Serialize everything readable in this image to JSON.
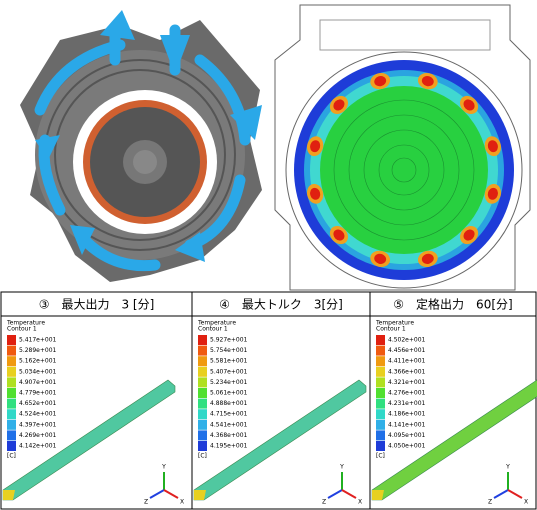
{
  "panels": [
    {
      "title": "③　最大出力　3 [分]",
      "legend_title": "Temperature",
      "legend_subtitle": "Contour 1",
      "levels": [
        "5.417e+001",
        "5.289e+001",
        "5.162e+001",
        "5.034e+001",
        "4.907e+001",
        "4.779e+001",
        "4.652e+001",
        "4.524e+001",
        "4.397e+001",
        "4.269e+001",
        "4.142e+001"
      ],
      "unit": "[C]",
      "axes": [
        "Y",
        "Z",
        "X"
      ]
    },
    {
      "title": "④　最大トルク　3[分]",
      "legend_title": "Temperature",
      "legend_subtitle": "Contour 1",
      "levels": [
        "5.927e+001",
        "5.754e+001",
        "5.581e+001",
        "5.407e+001",
        "5.234e+001",
        "5.061e+001",
        "4.888e+001",
        "4.715e+001",
        "4.541e+001",
        "4.368e+001",
        "4.195e+001"
      ],
      "unit": "[C]",
      "axes": [
        "Y",
        "Z",
        "X"
      ]
    },
    {
      "title": "⑤　定格出力　60[分]",
      "legend_title": "Temperature",
      "legend_subtitle": "Contour 1",
      "levels": [
        "4.502e+001",
        "4.456e+001",
        "4.411e+001",
        "4.366e+001",
        "4.321e+001",
        "4.276e+001",
        "4.231e+001",
        "4.186e+001",
        "4.141e+001",
        "4.095e+001",
        "4.050e+001"
      ],
      "unit": "[C]",
      "axes": [
        "Y",
        "Z",
        "X"
      ]
    }
  ]
}
